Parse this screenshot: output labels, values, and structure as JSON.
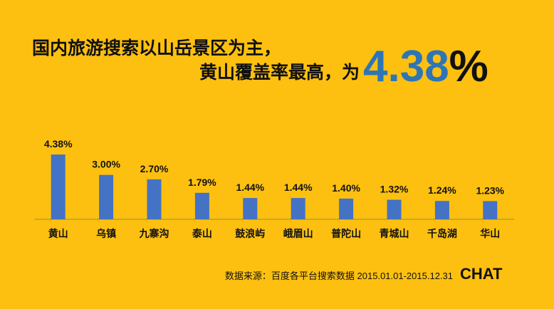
{
  "chart_data": {
    "type": "bar",
    "title_lines": [
      "国内旅游搜索以山岳景区为主，",
      "黄山覆盖率最高，为"
    ],
    "highlight": {
      "number": "4.38",
      "unit": "%"
    },
    "categories": [
      "黄山",
      "乌镇",
      "九寨沟",
      "泰山",
      "鼓浪屿",
      "峨眉山",
      "普陀山",
      "青城山",
      "千岛湖",
      "华山"
    ],
    "values": [
      4.38,
      3.0,
      2.7,
      1.79,
      1.44,
      1.44,
      1.4,
      1.32,
      1.24,
      1.23
    ],
    "value_labels": [
      "4.38%",
      "3.00%",
      "2.70%",
      "1.79%",
      "1.44%",
      "1.44%",
      "1.40%",
      "1.32%",
      "1.24%",
      "1.23%"
    ],
    "color": "#4472c4",
    "source": "数据来源：百度各平台搜索数据 2015.01.01-2015.12.31",
    "logo": "CHAT"
  }
}
